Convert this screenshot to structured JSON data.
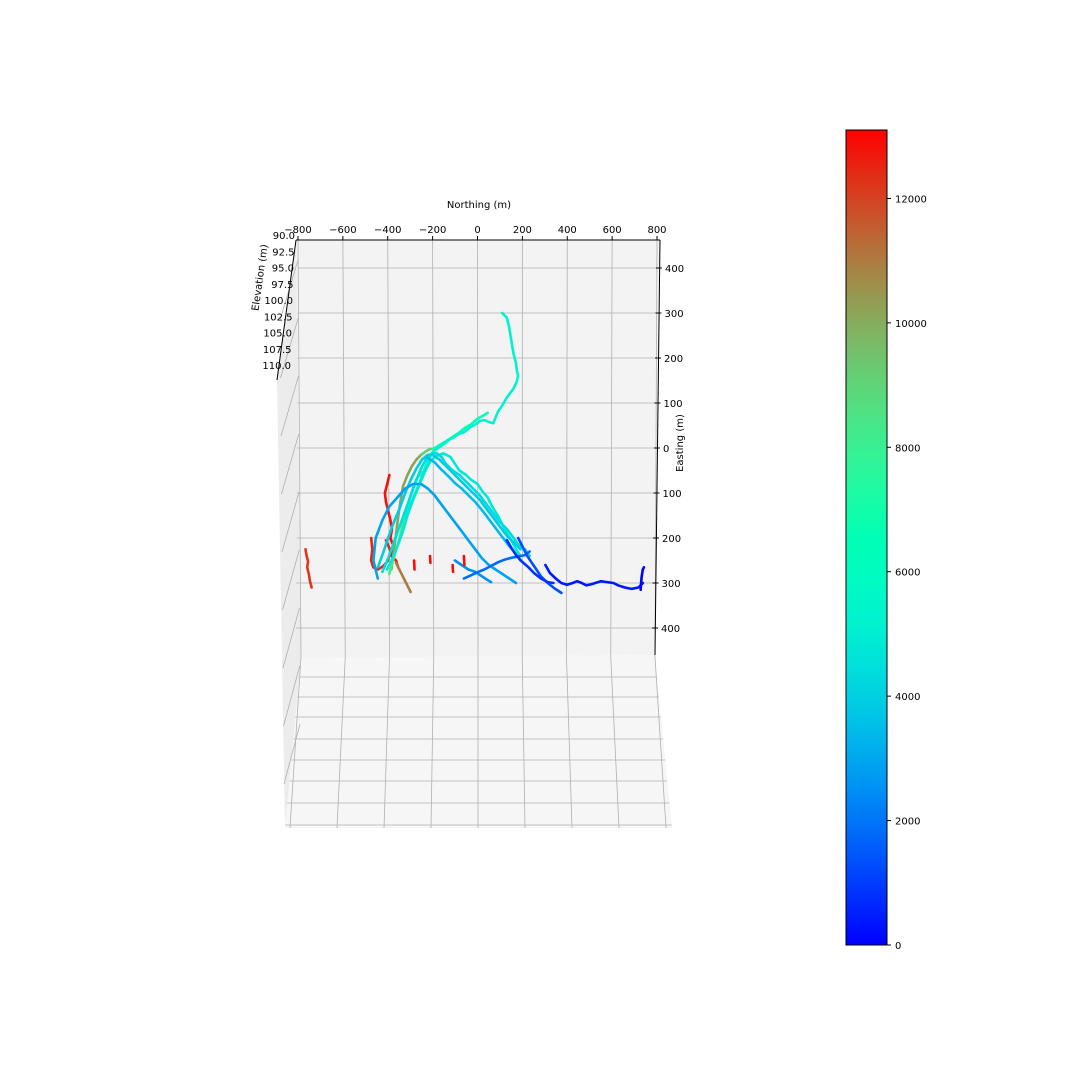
{
  "chart_data": {
    "type": "line",
    "subtype": "3d-trajectory",
    "title": "",
    "xlabel": "Northing (m)",
    "ylabel": "Easting (m)",
    "zlabel": "Elevation (m)",
    "x_ticks": [
      "−800",
      "−600",
      "−400",
      "−200",
      "0",
      "200",
      "400",
      "600",
      "800"
    ],
    "y_ticks": [
      "400",
      "300",
      "200",
      "100",
      "0",
      "100",
      "200",
      "300",
      "400"
    ],
    "z_ticks": [
      "90.0",
      "92.5",
      "95.0",
      "97.5",
      "100.0",
      "102.5",
      "105.0",
      "107.5",
      "110.0"
    ],
    "xlim": [
      -800,
      800
    ],
    "ylim": [
      -400,
      400
    ],
    "zlim": [
      90,
      110
    ],
    "grid": true,
    "colormap": "rainbow",
    "colorbar": {
      "min": 0,
      "max": 13100,
      "ticks": [
        "0",
        "2000",
        "4000",
        "6000",
        "8000",
        "10000",
        "12000"
      ],
      "tick_values": [
        0,
        2000,
        4000,
        6000,
        8000,
        10000,
        12000
      ],
      "placement": "right"
    },
    "series": [
      {
        "color_value": 12800,
        "points": [
          [
            -390,
            -60
          ],
          [
            -400,
            -80
          ],
          [
            -410,
            -100
          ],
          [
            -405,
            -120
          ],
          [
            -395,
            -140
          ],
          [
            -385,
            -160
          ],
          [
            -378,
            -180
          ],
          [
            -385,
            -200
          ],
          [
            -370,
            -220
          ],
          [
            -380,
            -240
          ],
          [
            -360,
            -250
          ],
          [
            -350,
            -265
          ]
        ]
      },
      {
        "color_value": 12500,
        "points": [
          [
            -470,
            -200
          ],
          [
            -465,
            -225
          ],
          [
            -470,
            -250
          ],
          [
            -460,
            -265
          ],
          [
            -440,
            -270
          ],
          [
            -415,
            -262
          ],
          [
            -395,
            -250
          ],
          [
            -385,
            -230
          ],
          [
            -395,
            -215
          ],
          [
            -405,
            -205
          ]
        ]
      },
      {
        "color_value": 12200,
        "points": [
          [
            -760,
            -225
          ],
          [
            -755,
            -240
          ],
          [
            -748,
            -252
          ],
          [
            -752,
            -265
          ],
          [
            -745,
            -280
          ],
          [
            -740,
            -295
          ],
          [
            -732,
            -310
          ]
        ]
      },
      {
        "color_value": 11000,
        "points": [
          [
            -360,
            -255
          ],
          [
            -340,
            -275
          ],
          [
            -320,
            -295
          ],
          [
            -305,
            -310
          ],
          [
            -295,
            -320
          ]
        ]
      },
      {
        "color_value": 10200,
        "points": [
          [
            -380,
            -270
          ],
          [
            -370,
            -230
          ],
          [
            -360,
            -190
          ],
          [
            -350,
            -150
          ],
          [
            -340,
            -115
          ],
          [
            -330,
            -85
          ],
          [
            -310,
            -60
          ],
          [
            -290,
            -40
          ],
          [
            -270,
            -25
          ],
          [
            -250,
            -15
          ]
        ]
      },
      {
        "color_value": 9200,
        "points": [
          [
            -250,
            -15
          ],
          [
            -230,
            -8
          ],
          [
            -210,
            -2
          ],
          [
            -195,
            -2
          ]
        ]
      },
      {
        "color_value": 8200,
        "points": [
          [
            -390,
            -280
          ],
          [
            -370,
            -245
          ],
          [
            -350,
            -210
          ],
          [
            -330,
            -170
          ],
          [
            -310,
            -130
          ],
          [
            -290,
            -95
          ],
          [
            -270,
            -70
          ],
          [
            -250,
            -55
          ],
          [
            -230,
            -50
          ]
        ]
      },
      {
        "color_value": 6600,
        "points": [
          [
            -195,
            -2
          ],
          [
            -170,
            6
          ],
          [
            -140,
            15
          ],
          [
            -110,
            25
          ],
          [
            -80,
            35
          ],
          [
            -55,
            45
          ],
          [
            -30,
            52
          ],
          [
            0,
            65
          ],
          [
            25,
            72
          ],
          [
            45,
            78
          ]
        ]
      },
      {
        "color_value": 5200,
        "points": [
          [
            -330,
            -160
          ],
          [
            -305,
            -135
          ],
          [
            -280,
            -105
          ],
          [
            -255,
            -75
          ],
          [
            -230,
            -40
          ],
          [
            -200,
            -10
          ],
          [
            -180,
            -2
          ],
          [
            -160,
            5
          ],
          [
            -140,
            12
          ],
          [
            -120,
            20
          ],
          [
            -100,
            25
          ],
          [
            -80,
            32
          ],
          [
            -60,
            35
          ],
          [
            -30,
            47
          ],
          [
            -10,
            52
          ],
          [
            10,
            60
          ],
          [
            30,
            62
          ],
          [
            50,
            58
          ],
          [
            70,
            55
          ],
          [
            90,
            80
          ],
          [
            110,
            95
          ],
          [
            130,
            112
          ],
          [
            160,
            132
          ],
          [
            175,
            148
          ],
          [
            180,
            160
          ],
          [
            175,
            172
          ],
          [
            170,
            190
          ],
          [
            160,
            210
          ],
          [
            150,
            240
          ],
          [
            140,
            270
          ],
          [
            130,
            290
          ],
          [
            110,
            300
          ]
        ]
      },
      {
        "color_value": 4800,
        "points": [
          [
            -400,
            -270
          ],
          [
            -380,
            -250
          ],
          [
            -355,
            -220
          ],
          [
            -330,
            -185
          ],
          [
            -310,
            -150
          ],
          [
            -285,
            -115
          ],
          [
            -260,
            -85
          ],
          [
            -235,
            -55
          ],
          [
            -210,
            -30
          ],
          [
            -190,
            -20
          ],
          [
            -170,
            -15
          ],
          [
            -150,
            -12
          ],
          [
            -120,
            -20
          ],
          [
            -100,
            -35
          ],
          [
            -80,
            -50
          ],
          [
            -50,
            -60
          ],
          [
            -30,
            -70
          ],
          [
            0,
            -80
          ],
          [
            20,
            -95
          ],
          [
            45,
            -110
          ],
          [
            65,
            -130
          ],
          [
            90,
            -150
          ],
          [
            110,
            -170
          ],
          [
            130,
            -190
          ],
          [
            150,
            -205
          ],
          [
            170,
            -225
          ],
          [
            190,
            -240
          ]
        ]
      },
      {
        "color_value": 4300,
        "points": [
          [
            -420,
            -275
          ],
          [
            -395,
            -245
          ],
          [
            -370,
            -210
          ],
          [
            -345,
            -175
          ],
          [
            -320,
            -140
          ],
          [
            -295,
            -105
          ],
          [
            -270,
            -70
          ],
          [
            -245,
            -40
          ],
          [
            -220,
            -18
          ],
          [
            -200,
            -12
          ],
          [
            -180,
            -12
          ],
          [
            -160,
            -20
          ],
          [
            -140,
            -35
          ],
          [
            -110,
            -50
          ],
          [
            -80,
            -60
          ],
          [
            -50,
            -75
          ],
          [
            -20,
            -90
          ],
          [
            10,
            -105
          ],
          [
            40,
            -125
          ],
          [
            70,
            -145
          ],
          [
            100,
            -165
          ],
          [
            130,
            -180
          ],
          [
            160,
            -200
          ],
          [
            180,
            -215
          ],
          [
            210,
            -225
          ],
          [
            230,
            -240
          ]
        ]
      },
      {
        "color_value": 3900,
        "points": [
          [
            -440,
            -265
          ],
          [
            -415,
            -230
          ],
          [
            -395,
            -200
          ],
          [
            -370,
            -165
          ],
          [
            -345,
            -135
          ],
          [
            -320,
            -100
          ],
          [
            -295,
            -70
          ],
          [
            -270,
            -45
          ],
          [
            -245,
            -25
          ],
          [
            -220,
            -15
          ],
          [
            -200,
            -15
          ],
          [
            -170,
            -25
          ],
          [
            -140,
            -40
          ],
          [
            -110,
            -55
          ],
          [
            -80,
            -70
          ],
          [
            -50,
            -85
          ],
          [
            -20,
            -100
          ],
          [
            10,
            -115
          ],
          [
            40,
            -135
          ],
          [
            70,
            -155
          ],
          [
            100,
            -175
          ],
          [
            130,
            -195
          ],
          [
            160,
            -210
          ],
          [
            190,
            -225
          ]
        ]
      },
      {
        "color_value": 3400,
        "points": [
          [
            -220,
            -22
          ],
          [
            -190,
            -32
          ],
          [
            -160,
            -48
          ],
          [
            -130,
            -62
          ],
          [
            -100,
            -78
          ],
          [
            -70,
            -90
          ],
          [
            -40,
            -105
          ],
          [
            -10,
            -120
          ],
          [
            20,
            -138
          ],
          [
            50,
            -158
          ],
          [
            80,
            -178
          ],
          [
            110,
            -198
          ],
          [
            140,
            -218
          ],
          [
            170,
            -235
          ],
          [
            190,
            -250
          ]
        ]
      },
      {
        "color_value": 2900,
        "points": [
          [
            -440,
            -290
          ],
          [
            -460,
            -250
          ],
          [
            -450,
            -200
          ],
          [
            -420,
            -160
          ],
          [
            -390,
            -130
          ],
          [
            -355,
            -110
          ],
          [
            -320,
            -90
          ],
          [
            -285,
            -80
          ],
          [
            -250,
            -80
          ],
          [
            -220,
            -90
          ],
          [
            -190,
            -105
          ],
          [
            -160,
            -125
          ],
          [
            -130,
            -145
          ],
          [
            -100,
            -165
          ],
          [
            -70,
            -185
          ],
          [
            -40,
            -205
          ],
          [
            -10,
            -225
          ],
          [
            20,
            -245
          ],
          [
            50,
            -260
          ],
          [
            80,
            -270
          ],
          [
            110,
            -280
          ],
          [
            140,
            -290
          ],
          [
            170,
            -300
          ]
        ]
      },
      {
        "color_value": 2500,
        "points": [
          [
            -100,
            -250
          ],
          [
            -70,
            -260
          ],
          [
            -40,
            -270
          ],
          [
            -10,
            -275
          ],
          [
            20,
            -285
          ],
          [
            40,
            -292
          ],
          [
            60,
            -298
          ]
        ]
      },
      {
        "color_value": 1800,
        "points": [
          [
            -60,
            -290
          ],
          [
            -30,
            -283
          ],
          [
            0,
            -276
          ],
          [
            30,
            -270
          ],
          [
            60,
            -262
          ],
          [
            90,
            -254
          ],
          [
            120,
            -248
          ],
          [
            150,
            -244
          ],
          [
            180,
            -241
          ],
          [
            210,
            -238
          ],
          [
            230,
            -230
          ]
        ]
      },
      {
        "color_value": 1300,
        "points": [
          [
            180,
            -200
          ],
          [
            195,
            -215
          ],
          [
            210,
            -230
          ],
          [
            220,
            -240
          ],
          [
            240,
            -255
          ],
          [
            260,
            -270
          ],
          [
            280,
            -285
          ],
          [
            310,
            -300
          ],
          [
            340,
            -312
          ],
          [
            370,
            -322
          ]
        ]
      },
      {
        "color_value": 800,
        "points": [
          [
            130,
            -205
          ],
          [
            150,
            -222
          ],
          [
            170,
            -238
          ],
          [
            195,
            -252
          ],
          [
            225,
            -265
          ],
          [
            250,
            -278
          ],
          [
            280,
            -290
          ],
          [
            310,
            -298
          ],
          [
            335,
            -300
          ]
        ]
      },
      {
        "color_value": 400,
        "points": [
          [
            300,
            -260
          ],
          [
            320,
            -278
          ],
          [
            345,
            -290
          ],
          [
            370,
            -300
          ],
          [
            395,
            -304
          ],
          [
            420,
            -300
          ],
          [
            440,
            -296
          ],
          [
            460,
            -300
          ],
          [
            480,
            -305
          ],
          [
            500,
            -303
          ],
          [
            520,
            -300
          ],
          [
            545,
            -296
          ],
          [
            570,
            -298
          ],
          [
            600,
            -300
          ],
          [
            620,
            -305
          ],
          [
            650,
            -310
          ],
          [
            680,
            -313
          ],
          [
            710,
            -310
          ],
          [
            730,
            -300
          ]
        ]
      },
      {
        "color_value": 0,
        "points": [
          [
            720,
            -315
          ],
          [
            722,
            -300
          ],
          [
            725,
            -285
          ],
          [
            730,
            -270
          ],
          [
            735,
            -265
          ]
        ]
      },
      {
        "color_value": 12900,
        "points": [
          [
            -280,
            -250
          ],
          [
            -278,
            -270
          ]
        ]
      },
      {
        "color_value": 12900,
        "points": [
          [
            -210,
            -240
          ],
          [
            -208,
            -255
          ]
        ]
      },
      {
        "color_value": 12900,
        "points": [
          [
            -110,
            -260
          ],
          [
            -108,
            -275
          ]
        ]
      },
      {
        "color_value": 12900,
        "points": [
          [
            -60,
            -240
          ],
          [
            -58,
            -260
          ]
        ]
      }
    ]
  }
}
